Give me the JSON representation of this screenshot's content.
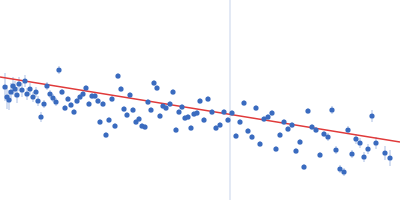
{
  "chart_data": {
    "type": "scatter",
    "tick_labels": false,
    "grid": false,
    "color": "#3a6bbf",
    "marker": "circle",
    "xlim": [
      0,
      400
    ],
    "ylim": [
      0,
      200
    ],
    "x": [
      5,
      7,
      9,
      11,
      13,
      15,
      17,
      19,
      22,
      25,
      27,
      30,
      33,
      36,
      38,
      41,
      44,
      47,
      50,
      53,
      56,
      59,
      62,
      65,
      68,
      71,
      74,
      77,
      80,
      83,
      86,
      89,
      92,
      95,
      98,
      100,
      103,
      106,
      109,
      112,
      115,
      118,
      121,
      124,
      127,
      130,
      133,
      136,
      139,
      142,
      145,
      148,
      151,
      154,
      157,
      160,
      163,
      166,
      170,
      173,
      176,
      179,
      182,
      185,
      188,
      191,
      194,
      197,
      200,
      204,
      208,
      212,
      216,
      220,
      224,
      228,
      232,
      236,
      240,
      244,
      248,
      252,
      256,
      260,
      264,
      268,
      272,
      276,
      280,
      284,
      288,
      292,
      296,
      300,
      304,
      308,
      312,
      316,
      320,
      324,
      328,
      332,
      336,
      340,
      344,
      348,
      352,
      356,
      360,
      364,
      368,
      372,
      376,
      385,
      390
    ],
    "values": [
      113,
      103,
      100,
      108,
      114,
      111,
      105,
      116,
      110,
      119,
      106,
      111,
      103,
      108,
      99,
      83,
      96,
      114,
      106,
      102,
      98,
      130,
      108,
      92,
      101,
      95,
      88,
      99,
      103,
      106,
      112,
      96,
      104,
      104,
      99,
      78,
      96,
      65,
      80,
      101,
      74,
      124,
      111,
      91,
      85,
      105,
      90,
      78,
      81,
      74,
      73,
      98,
      90,
      117,
      112,
      84,
      94,
      92,
      96,
      108,
      70,
      88,
      93,
      82,
      83,
      72,
      86,
      87,
      99,
      80,
      101,
      88,
      72,
      75,
      88,
      80,
      87,
      64,
      78,
      97,
      69,
      63,
      92,
      56,
      81,
      83,
      87,
      51,
      65,
      78,
      71,
      75,
      49,
      58,
      33,
      89,
      73,
      70,
      45,
      66,
      63,
      90,
      50,
      31,
      28,
      70,
      46,
      61,
      57,
      43,
      51,
      84,
      57,
      47,
      42
    ],
    "errors": [
      14,
      12,
      10,
      9,
      9,
      8,
      8,
      7,
      7,
      6,
      6,
      6,
      5,
      5,
      5,
      5,
      4,
      4,
      4,
      4,
      4,
      4,
      3,
      3,
      3,
      3,
      3,
      3,
      3,
      3,
      3,
      3,
      3,
      3,
      3,
      3,
      3,
      3,
      3,
      3,
      3,
      3,
      3,
      3,
      3,
      3,
      3,
      3,
      3,
      3,
      3,
      3,
      3,
      3,
      3,
      3,
      3,
      3,
      3,
      3,
      3,
      3,
      3,
      3,
      3,
      3,
      3,
      3,
      3,
      3,
      3,
      3,
      3,
      3,
      3,
      3,
      3,
      3,
      3,
      3,
      3,
      3,
      3,
      3,
      3,
      3,
      3,
      3,
      3,
      3,
      3,
      3,
      3,
      3,
      3,
      3,
      3,
      3,
      3,
      3,
      4,
      4,
      4,
      4,
      4,
      4,
      4,
      5,
      5,
      5,
      5,
      6,
      6,
      7,
      8
    ],
    "fit": {
      "x": [
        0,
        400
      ],
      "values": [
        123,
        58
      ],
      "color": "#e03a3a"
    },
    "vline": {
      "x": 230,
      "color": "#c7d3ea"
    },
    "error_color": "#a9bde3"
  }
}
